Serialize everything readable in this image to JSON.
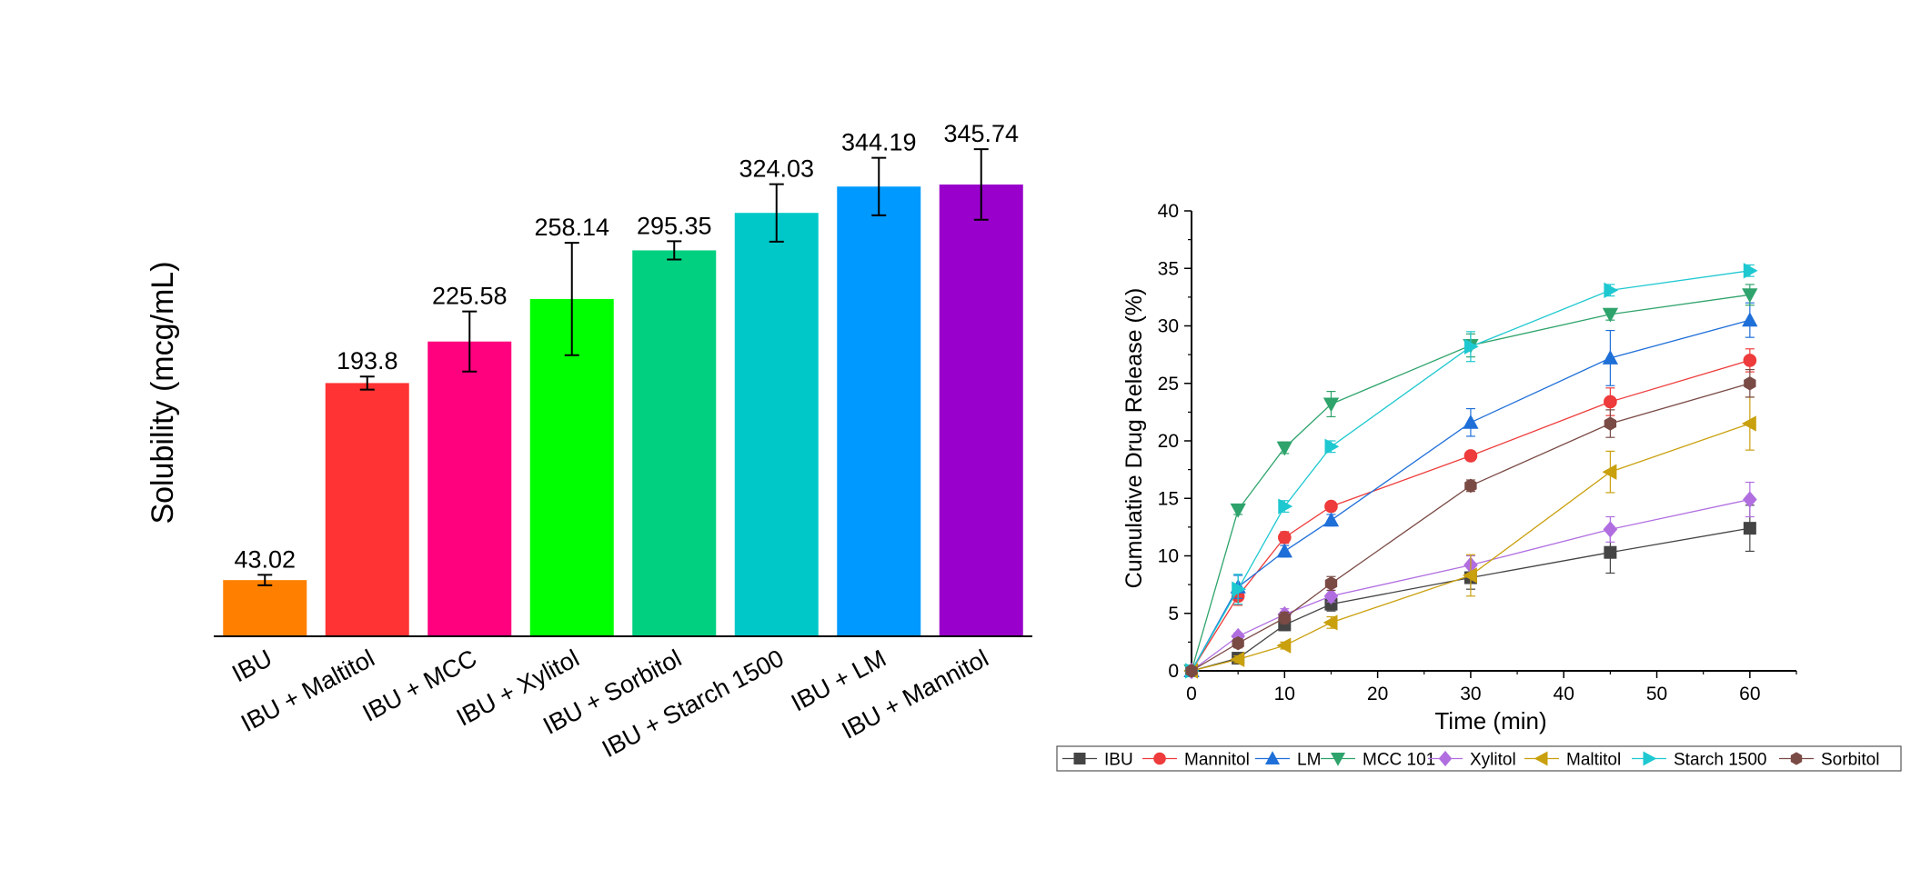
{
  "chart_data": [
    {
      "type": "bar",
      "title": "",
      "xlabel": "",
      "ylabel": "Solubility (mcg/mL)",
      "ylim": [
        0,
        400
      ],
      "categories": [
        "IBU",
        "IBU + Maltitol",
        "IBU + MCC",
        "IBU + Xylitol",
        "IBU + Sorbitol",
        "IBU + Starch 1500",
        "IBU + LM",
        "IBU + Mannitol"
      ],
      "values": [
        43.02,
        193.8,
        225.58,
        258.14,
        295.35,
        324.03,
        344.19,
        345.74
      ],
      "value_labels": [
        "43.02",
        "193.8",
        "225.58",
        "258.14",
        "295.35",
        "324.03",
        "344.19",
        "345.74"
      ],
      "errors": [
        4,
        5,
        23,
        43,
        7,
        22,
        22,
        27
      ],
      "colors": [
        "#ff8000",
        "#ff3333",
        "#ff007f",
        "#00ff00",
        "#00d080",
        "#00c8c8",
        "#0099ff",
        "#9900cc"
      ]
    },
    {
      "type": "line",
      "title": "",
      "xlabel": "Time (min)",
      "ylabel": "Cumulative Drug Release (%)",
      "xlim": [
        0,
        65
      ],
      "ylim": [
        0,
        40
      ],
      "xticks": [
        "0",
        "10",
        "20",
        "30",
        "40",
        "50",
        "60"
      ],
      "yticks": [
        "0",
        "5",
        "10",
        "15",
        "20",
        "25",
        "30",
        "35",
        "40"
      ],
      "x": [
        0,
        5,
        10,
        15,
        30,
        45,
        60
      ],
      "legend_position": "bottom",
      "series": [
        {
          "name": "IBU",
          "color": "#444444",
          "marker": "square",
          "values": [
            0,
            1.1,
            4.0,
            5.8,
            8.1,
            10.3,
            12.4
          ],
          "errors": [
            0,
            0.3,
            0.5,
            0.6,
            1.0,
            1.8,
            2.0
          ]
        },
        {
          "name": "Mannitol",
          "color": "#ee3b3b",
          "marker": "circle",
          "values": [
            0,
            6.5,
            11.6,
            14.3,
            18.7,
            23.4,
            27.0
          ],
          "errors": [
            0,
            0.8,
            0.5,
            0.4,
            0.4,
            1.2,
            1.0
          ]
        },
        {
          "name": "LM",
          "color": "#1f6fd8",
          "marker": "triangle-up",
          "values": [
            0,
            7.3,
            10.4,
            13.1,
            21.6,
            27.2,
            30.5
          ],
          "errors": [
            0,
            1.0,
            0.5,
            0.5,
            1.2,
            2.4,
            1.5
          ]
        },
        {
          "name": "MCC 101",
          "color": "#2ea36b",
          "marker": "triangle-down",
          "values": [
            0,
            14.0,
            19.4,
            23.2,
            28.3,
            31.0,
            32.7
          ],
          "errors": [
            0,
            0.4,
            0.5,
            1.1,
            1.0,
            0.5,
            0.9
          ]
        },
        {
          "name": "Xylitol",
          "color": "#b06ee0",
          "marker": "diamond",
          "values": [
            0,
            3.0,
            4.9,
            6.5,
            9.2,
            12.3,
            14.9
          ],
          "errors": [
            0,
            0.3,
            0.5,
            0.5,
            0.8,
            1.1,
            1.5
          ]
        },
        {
          "name": "Maltitol",
          "color": "#c9a00e",
          "marker": "triangle-left",
          "values": [
            0,
            1.0,
            2.2,
            4.2,
            8.3,
            17.3,
            21.5
          ],
          "errors": [
            0,
            0.3,
            0.3,
            0.5,
            1.8,
            1.8,
            2.3
          ]
        },
        {
          "name": "Starch 1500",
          "color": "#1ec8d0",
          "marker": "triangle-right",
          "values": [
            0,
            7.1,
            14.3,
            19.5,
            28.2,
            33.1,
            34.8
          ],
          "errors": [
            0,
            1.3,
            0.5,
            0.5,
            1.3,
            0.5,
            0.5
          ]
        },
        {
          "name": "Sorbitol",
          "color": "#7a4a45",
          "marker": "hexagon",
          "values": [
            0,
            2.4,
            4.6,
            7.6,
            16.1,
            21.5,
            25.0
          ],
          "errors": [
            0,
            0.4,
            0.5,
            0.6,
            0.5,
            1.2,
            1.2
          ]
        }
      ]
    }
  ]
}
